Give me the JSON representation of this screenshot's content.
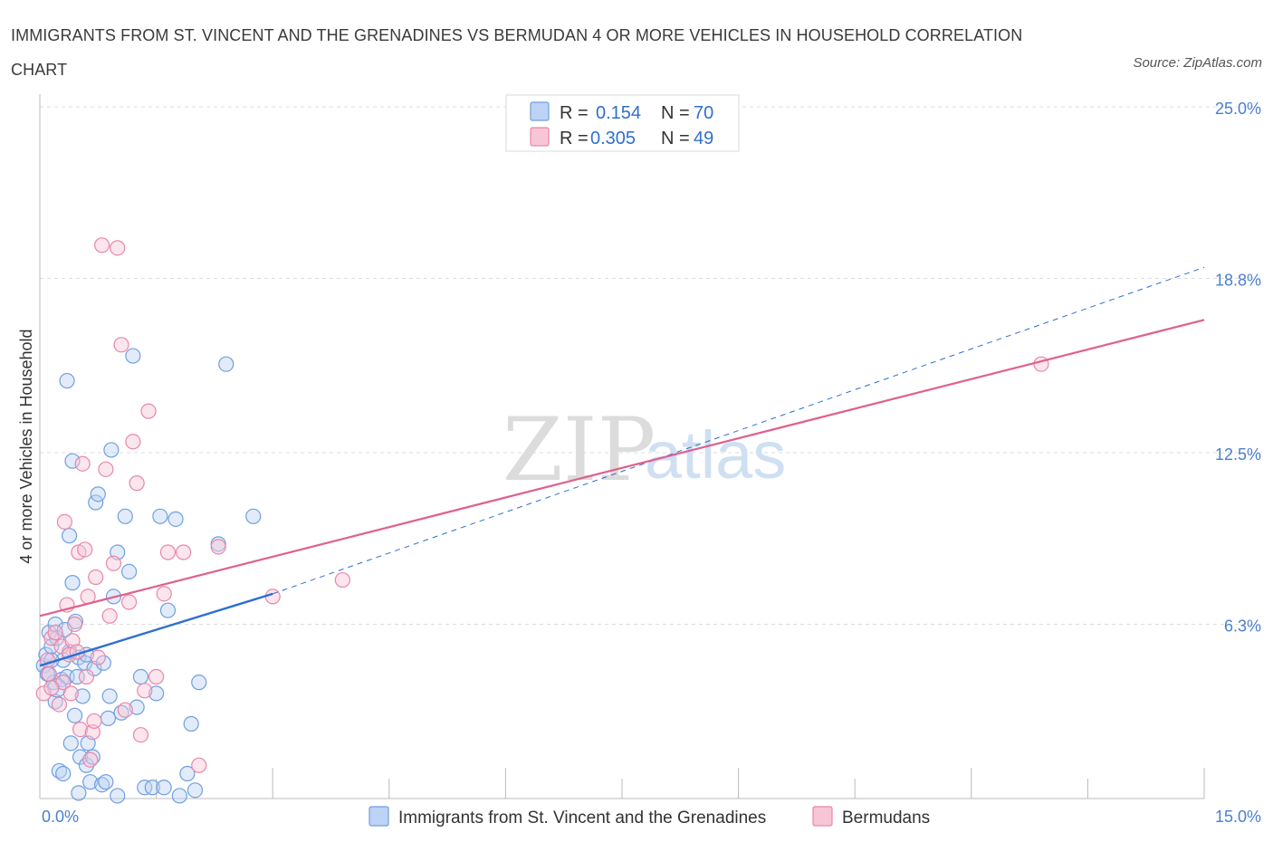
{
  "title": "IMMIGRANTS FROM ST. VINCENT AND THE GRENADINES VS BERMUDAN 4 OR MORE VEHICLES IN HOUSEHOLD CORRELATION CHART",
  "source": "Source: ZipAtlas.com",
  "watermark": {
    "zip": "ZIP",
    "atlas": "atlas"
  },
  "colors": {
    "blue": "#6f9fe0",
    "blue_fill": "#bcd3f5",
    "pink": "#e887a8",
    "pink_fill": "#f8c5d6",
    "blue_line": "#2e6fd2",
    "pink_line": "#e0608e",
    "accent_text": "#2f6fd0"
  },
  "legend": {
    "r_label": "R =",
    "n_label": "N =",
    "series": [
      {
        "r": "0.154",
        "n": "70"
      },
      {
        "r": "0.305",
        "n": "49"
      }
    ]
  },
  "chart_data": {
    "type": "scatter",
    "ylabel": "4 or more Vehicles in Household",
    "xlim": [
      0,
      15
    ],
    "ylim": [
      0,
      25
    ],
    "x_tick_labels": [
      {
        "value": 0,
        "label": "0.0%"
      },
      {
        "value": 15,
        "label": "15.0%"
      }
    ],
    "y_tick_labels": [
      {
        "value": 6.3,
        "label": "6.3%"
      },
      {
        "value": 12.5,
        "label": "12.5%"
      },
      {
        "value": 18.8,
        "label": "18.8%"
      },
      {
        "value": 25.0,
        "label": "25.0%"
      }
    ],
    "x_minor_ticks": [
      0,
      1.5,
      3,
      4.5,
      6,
      7.5,
      9,
      10.5,
      12,
      13.5,
      15
    ],
    "grid": true,
    "legend_position": "top-center",
    "series": [
      {
        "name": "Immigrants from St. Vincent and the Grenadines",
        "color": "blue",
        "points": [
          [
            0.05,
            4.8
          ],
          [
            0.08,
            5.2
          ],
          [
            0.1,
            4.5
          ],
          [
            0.12,
            6.0
          ],
          [
            0.15,
            5.5
          ],
          [
            0.18,
            4.2
          ],
          [
            0.2,
            6.3
          ],
          [
            0.22,
            5.8
          ],
          [
            0.25,
            1.0
          ],
          [
            0.28,
            4.3
          ],
          [
            0.3,
            5.0
          ],
          [
            0.32,
            6.1
          ],
          [
            0.35,
            4.4
          ],
          [
            0.38,
            5.3
          ],
          [
            0.4,
            2.0
          ],
          [
            0.42,
            7.8
          ],
          [
            0.45,
            3.0
          ],
          [
            0.48,
            4.4
          ],
          [
            0.5,
            5.1
          ],
          [
            0.35,
            15.1
          ],
          [
            0.38,
            9.5
          ],
          [
            0.42,
            12.2
          ],
          [
            0.46,
            6.4
          ],
          [
            0.5,
            0.2
          ],
          [
            0.52,
            1.5
          ],
          [
            0.55,
            3.7
          ],
          [
            0.58,
            4.9
          ],
          [
            0.6,
            1.2
          ],
          [
            0.62,
            2.0
          ],
          [
            0.65,
            0.6
          ],
          [
            0.68,
            1.5
          ],
          [
            0.7,
            4.7
          ],
          [
            0.72,
            10.7
          ],
          [
            0.75,
            11.0
          ],
          [
            0.8,
            0.5
          ],
          [
            0.82,
            4.9
          ],
          [
            0.85,
            0.6
          ],
          [
            0.88,
            2.9
          ],
          [
            0.9,
            3.7
          ],
          [
            0.92,
            12.6
          ],
          [
            0.95,
            7.3
          ],
          [
            1.0,
            0.1
          ],
          [
            1.0,
            8.9
          ],
          [
            1.05,
            3.1
          ],
          [
            1.1,
            10.2
          ],
          [
            1.15,
            8.2
          ],
          [
            1.2,
            16.0
          ],
          [
            1.25,
            3.3
          ],
          [
            1.3,
            4.4
          ],
          [
            1.35,
            0.4
          ],
          [
            1.45,
            0.4
          ],
          [
            1.5,
            3.8
          ],
          [
            1.55,
            10.2
          ],
          [
            1.6,
            0.4
          ],
          [
            1.65,
            6.8
          ],
          [
            1.75,
            10.1
          ],
          [
            1.8,
            0.1
          ],
          [
            1.9,
            0.9
          ],
          [
            1.95,
            2.7
          ],
          [
            2.0,
            0.3
          ],
          [
            2.05,
            4.2
          ],
          [
            2.3,
            9.2
          ],
          [
            2.4,
            15.7
          ],
          [
            2.75,
            10.2
          ],
          [
            0.1,
            4.5
          ],
          [
            0.15,
            5.0
          ],
          [
            0.2,
            3.5
          ],
          [
            0.3,
            0.9
          ],
          [
            0.22,
            4.0
          ],
          [
            0.6,
            5.2
          ]
        ]
      },
      {
        "name": "Bermudans",
        "color": "pink",
        "points": [
          [
            0.05,
            3.8
          ],
          [
            0.1,
            5.0
          ],
          [
            0.12,
            4.5
          ],
          [
            0.15,
            5.8
          ],
          [
            0.2,
            6.0
          ],
          [
            0.25,
            3.4
          ],
          [
            0.28,
            5.5
          ],
          [
            0.3,
            4.2
          ],
          [
            0.32,
            10.0
          ],
          [
            0.35,
            7.0
          ],
          [
            0.38,
            5.2
          ],
          [
            0.4,
            3.8
          ],
          [
            0.42,
            5.7
          ],
          [
            0.45,
            6.3
          ],
          [
            0.48,
            5.3
          ],
          [
            0.5,
            8.9
          ],
          [
            0.52,
            2.5
          ],
          [
            0.55,
            12.1
          ],
          [
            0.58,
            9.0
          ],
          [
            0.6,
            4.4
          ],
          [
            0.62,
            7.3
          ],
          [
            0.65,
            1.4
          ],
          [
            0.68,
            2.4
          ],
          [
            0.7,
            2.8
          ],
          [
            0.72,
            8.0
          ],
          [
            0.75,
            5.1
          ],
          [
            0.8,
            20.0
          ],
          [
            0.85,
            11.9
          ],
          [
            0.9,
            6.6
          ],
          [
            0.95,
            8.5
          ],
          [
            1.0,
            19.9
          ],
          [
            1.05,
            16.4
          ],
          [
            1.1,
            3.2
          ],
          [
            1.15,
            7.1
          ],
          [
            1.2,
            12.9
          ],
          [
            1.25,
            11.4
          ],
          [
            1.3,
            2.3
          ],
          [
            1.35,
            3.9
          ],
          [
            1.4,
            14.0
          ],
          [
            1.5,
            4.4
          ],
          [
            1.6,
            7.4
          ],
          [
            1.65,
            8.9
          ],
          [
            1.85,
            8.9
          ],
          [
            2.05,
            1.2
          ],
          [
            2.3,
            9.1
          ],
          [
            3.0,
            7.3
          ],
          [
            3.9,
            7.9
          ],
          [
            12.9,
            15.7
          ],
          [
            0.15,
            4.0
          ]
        ]
      }
    ],
    "trend_lines": [
      {
        "series": "Immigrants from St. Vincent and the Grenadines",
        "solid_from": [
          0,
          4.8
        ],
        "solid_to": [
          3.0,
          7.4
        ],
        "dashed_to": [
          15,
          19.2
        ]
      },
      {
        "series": "Bermudans",
        "from": [
          0,
          6.6
        ],
        "to": [
          15,
          17.3
        ]
      }
    ]
  },
  "bottom_legend": [
    {
      "label": "Immigrants from St. Vincent and the Grenadines",
      "color": "blue"
    },
    {
      "label": "Bermudans",
      "color": "pink"
    }
  ]
}
